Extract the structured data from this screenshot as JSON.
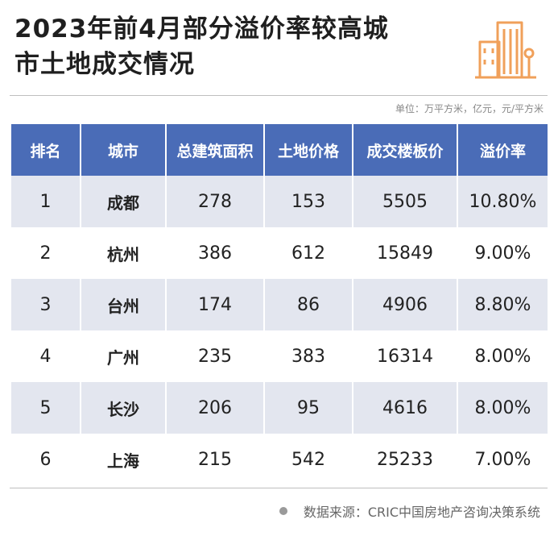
{
  "header": {
    "title_line1": "2023年前4月部分溢价率较高城",
    "title_line2": "市土地成交情况",
    "logo_icon": "city-buildings-icon",
    "accent_color": "#f0a05a"
  },
  "unit_note": "单位：万平方米，亿元，元/平方米",
  "chart_data": {
    "type": "table",
    "columns": [
      "排名",
      "城市",
      "总建筑面积",
      "土地价格",
      "成交楼板价",
      "溢价率"
    ],
    "rows": [
      [
        "1",
        "成都",
        "278",
        "153",
        "5505",
        "10.80%"
      ],
      [
        "2",
        "杭州",
        "386",
        "612",
        "15849",
        "9.00%"
      ],
      [
        "3",
        "台州",
        "174",
        "86",
        "4906",
        "8.80%"
      ],
      [
        "4",
        "广州",
        "235",
        "383",
        "16314",
        "8.00%"
      ],
      [
        "5",
        "长沙",
        "206",
        "95",
        "4616",
        "8.00%"
      ],
      [
        "6",
        "上海",
        "215",
        "542",
        "25233",
        "7.00%"
      ]
    ],
    "header_color": "#4a6cb7",
    "stripe_color": "#e3e6ef"
  },
  "footer": {
    "source": "数据来源：CRIC中国房地产咨询决策系统"
  }
}
